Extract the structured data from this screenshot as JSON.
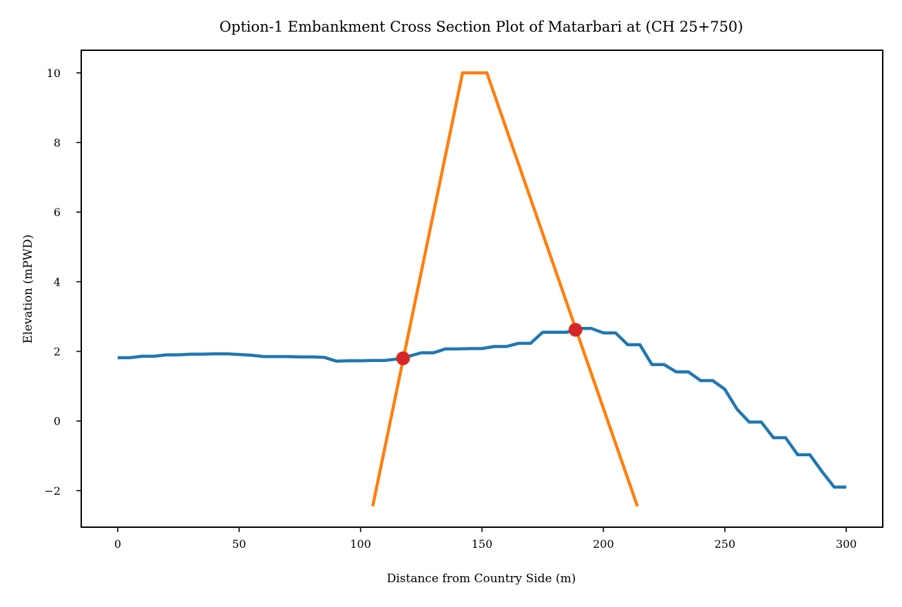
{
  "chart_data": {
    "type": "line",
    "title": "Option-1 Embankment Cross Section Plot of Matarbari at (CH 25+750)",
    "xlabel": "Distance from Country Side (m)",
    "ylabel": "Elevation (mPWD)",
    "xlim": [
      -15,
      315
    ],
    "ylim": [
      -3.05,
      10.65
    ],
    "xticks": [
      0,
      50,
      100,
      150,
      200,
      250,
      300
    ],
    "yticks": [
      -2,
      0,
      2,
      4,
      6,
      8,
      10
    ],
    "grid": false,
    "series": [
      {
        "color": "#1f77b4",
        "x": [
          0,
          5,
          10,
          15,
          20,
          25,
          30,
          35,
          40,
          45,
          50,
          55,
          60,
          65,
          70,
          75,
          80,
          85,
          90,
          95,
          100,
          105,
          110,
          115,
          120,
          125,
          130,
          135,
          140,
          145,
          150,
          155,
          160,
          165,
          170,
          175,
          180,
          185,
          190,
          195,
          200,
          205,
          210,
          215,
          220,
          225,
          230,
          235,
          240,
          245,
          250,
          255,
          260,
          265,
          270,
          275,
          280,
          285,
          290,
          295,
          300
        ],
        "y": [
          1.82,
          1.82,
          1.86,
          1.86,
          1.9,
          1.9,
          1.92,
          1.92,
          1.93,
          1.93,
          1.91,
          1.89,
          1.85,
          1.85,
          1.85,
          1.84,
          1.84,
          1.83,
          1.72,
          1.73,
          1.73,
          1.74,
          1.74,
          1.78,
          1.86,
          1.96,
          1.96,
          2.07,
          2.07,
          2.08,
          2.08,
          2.14,
          2.14,
          2.23,
          2.23,
          2.55,
          2.55,
          2.55,
          2.66,
          2.66,
          2.53,
          2.53,
          2.19,
          2.19,
          1.62,
          1.62,
          1.41,
          1.41,
          1.16,
          1.16,
          0.91,
          0.34,
          -0.03,
          -0.03,
          -0.48,
          -0.48,
          -0.97,
          -0.97,
          -1.45,
          -1.9,
          -1.9
        ]
      },
      {
        "color": "#ff7f0e",
        "x": [
          105,
          142,
          152,
          214
        ],
        "y": [
          -2.45,
          10.0,
          10.0,
          -2.45
        ]
      }
    ],
    "points": [
      {
        "x": 117.5,
        "y": 1.8,
        "color": "#d62728"
      },
      {
        "x": 188.5,
        "y": 2.62,
        "color": "#d62728"
      }
    ]
  }
}
